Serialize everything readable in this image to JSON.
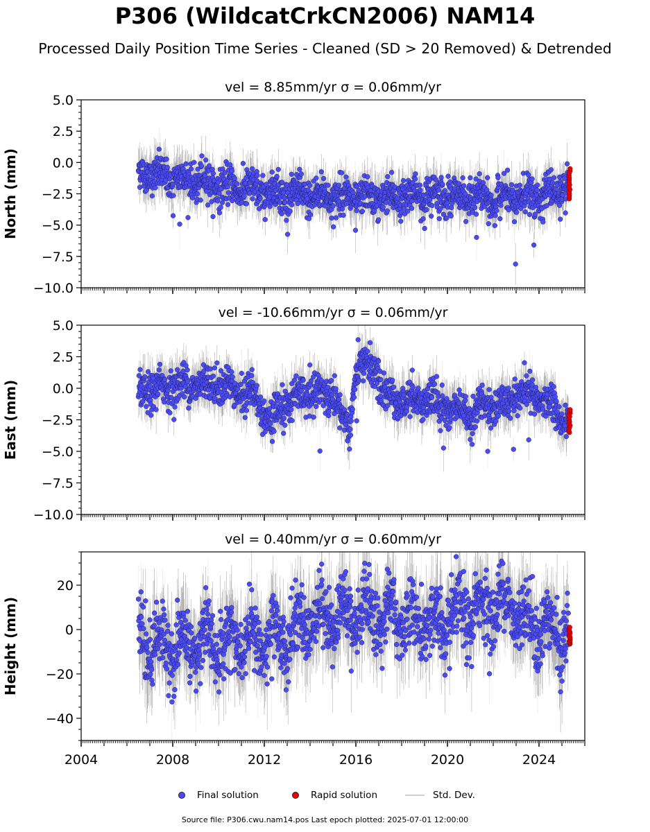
{
  "title": "P306 (WildcatCrkCN2006) NAM14",
  "subtitle": "Processed Daily Position Time Series - Cleaned (SD > 20 Removed) & Detrended",
  "legend": {
    "final": "Final solution",
    "rapid": "Rapid solution",
    "std": "Std. Dev."
  },
  "footer": "Source file: P306.cwu.nam14.pos  Last epoch plotted: 2025-07-01 12:00:00",
  "colors": {
    "final": "#4b4bf5",
    "rapid": "#ee0000",
    "std": "#cfcfcf",
    "std_dense": "#707070"
  },
  "chart_data": [
    {
      "type": "scatter",
      "title": "vel = 8.85mm/yr   σ = 0.06mm/yr",
      "ylabel": "North (mm)",
      "xlim": [
        2004.0,
        2026.0
      ],
      "ylim": [
        -10.0,
        5.0
      ],
      "yticks": [
        5.0,
        2.5,
        0.0,
        -2.5,
        -5.0,
        -7.5,
        -10.0
      ],
      "ytick_labels": [
        "5.0",
        "2.5",
        "0.0",
        "−2.5",
        "−5.0",
        "−7.5",
        "−10.0"
      ],
      "xticks": [
        2004,
        2008,
        2012,
        2016,
        2020,
        2024
      ],
      "xtick_labels": [],
      "series_trend": [
        [
          2006.5,
          -0.8
        ],
        [
          2008,
          -1.3
        ],
        [
          2010,
          -1.8
        ],
        [
          2012,
          -2.4
        ],
        [
          2014,
          -2.6
        ],
        [
          2016,
          -2.8
        ],
        [
          2018,
          -2.7
        ],
        [
          2020,
          -2.6
        ],
        [
          2022,
          -3.0
        ],
        [
          2024,
          -2.6
        ],
        [
          2025.3,
          -2.2
        ]
      ],
      "series_spread": 0.95,
      "rapid": {
        "x": [
          2025.3,
          2025.5
        ],
        "y": [
          -2.9,
          -0.5
        ]
      }
    },
    {
      "type": "scatter",
      "title": "vel = -10.66mm/yr   σ = 0.06mm/yr",
      "ylabel": "East (mm)",
      "xlim": [
        2004.0,
        2026.0
      ],
      "ylim": [
        -10.0,
        5.0
      ],
      "yticks": [
        5.0,
        2.5,
        0.0,
        -2.5,
        -5.0,
        -7.5,
        -10.0
      ],
      "ytick_labels": [
        "5.0",
        "2.5",
        "0.0",
        "−2.5",
        "−5.0",
        "−7.5",
        "−10.0"
      ],
      "xticks": [
        2004,
        2008,
        2012,
        2016,
        2020,
        2024
      ],
      "xtick_labels": [],
      "series_trend": [
        [
          2006.5,
          -0.3
        ],
        [
          2008,
          0.2
        ],
        [
          2010,
          0.4
        ],
        [
          2011.5,
          -0.5
        ],
        [
          2012.3,
          -2.5
        ],
        [
          2013,
          -1.0
        ],
        [
          2014,
          -0.3
        ],
        [
          2015,
          -0.8
        ],
        [
          2015.7,
          -3.5
        ],
        [
          2016,
          1.5
        ],
        [
          2016.8,
          1.8
        ],
        [
          2017.3,
          -0.8
        ],
        [
          2019,
          -0.8
        ],
        [
          2020,
          -1.5
        ],
        [
          2021,
          -2.0
        ],
        [
          2022,
          -1.4
        ],
        [
          2023,
          -0.6
        ],
        [
          2024,
          -0.8
        ],
        [
          2025.3,
          -2.3
        ]
      ],
      "series_spread": 0.95,
      "rapid": {
        "x": [
          2025.3,
          2025.5
        ],
        "y": [
          -3.5,
          -1.7
        ]
      }
    },
    {
      "type": "scatter",
      "title": "vel = 0.40mm/yr   σ = 0.60mm/yr",
      "ylabel": "Height (mm)",
      "xlim": [
        2004.0,
        2026.0
      ],
      "ylim": [
        -50.0,
        35.0
      ],
      "yticks": [
        20,
        0,
        -20,
        -40
      ],
      "ytick_labels": [
        "20",
        "0",
        "−20",
        "−40"
      ],
      "xticks": [
        2004,
        2008,
        2012,
        2016,
        2020,
        2024
      ],
      "xtick_labels": [
        "2004",
        "2008",
        "2012",
        "2016",
        "2020",
        "2024"
      ],
      "series_trend": [
        [
          2006.5,
          -6
        ],
        [
          2008,
          -8
        ],
        [
          2010,
          -5
        ],
        [
          2012,
          -6
        ],
        [
          2013,
          -3
        ],
        [
          2014,
          5
        ],
        [
          2016,
          8
        ],
        [
          2018,
          6
        ],
        [
          2019.5,
          2
        ],
        [
          2021,
          8
        ],
        [
          2022.5,
          12
        ],
        [
          2023.5,
          4
        ],
        [
          2025.3,
          -2
        ]
      ],
      "series_spread": 10,
      "rapid": {
        "x": [
          2025.3,
          2025.5
        ],
        "y": [
          -6.5,
          1.0
        ]
      }
    }
  ]
}
